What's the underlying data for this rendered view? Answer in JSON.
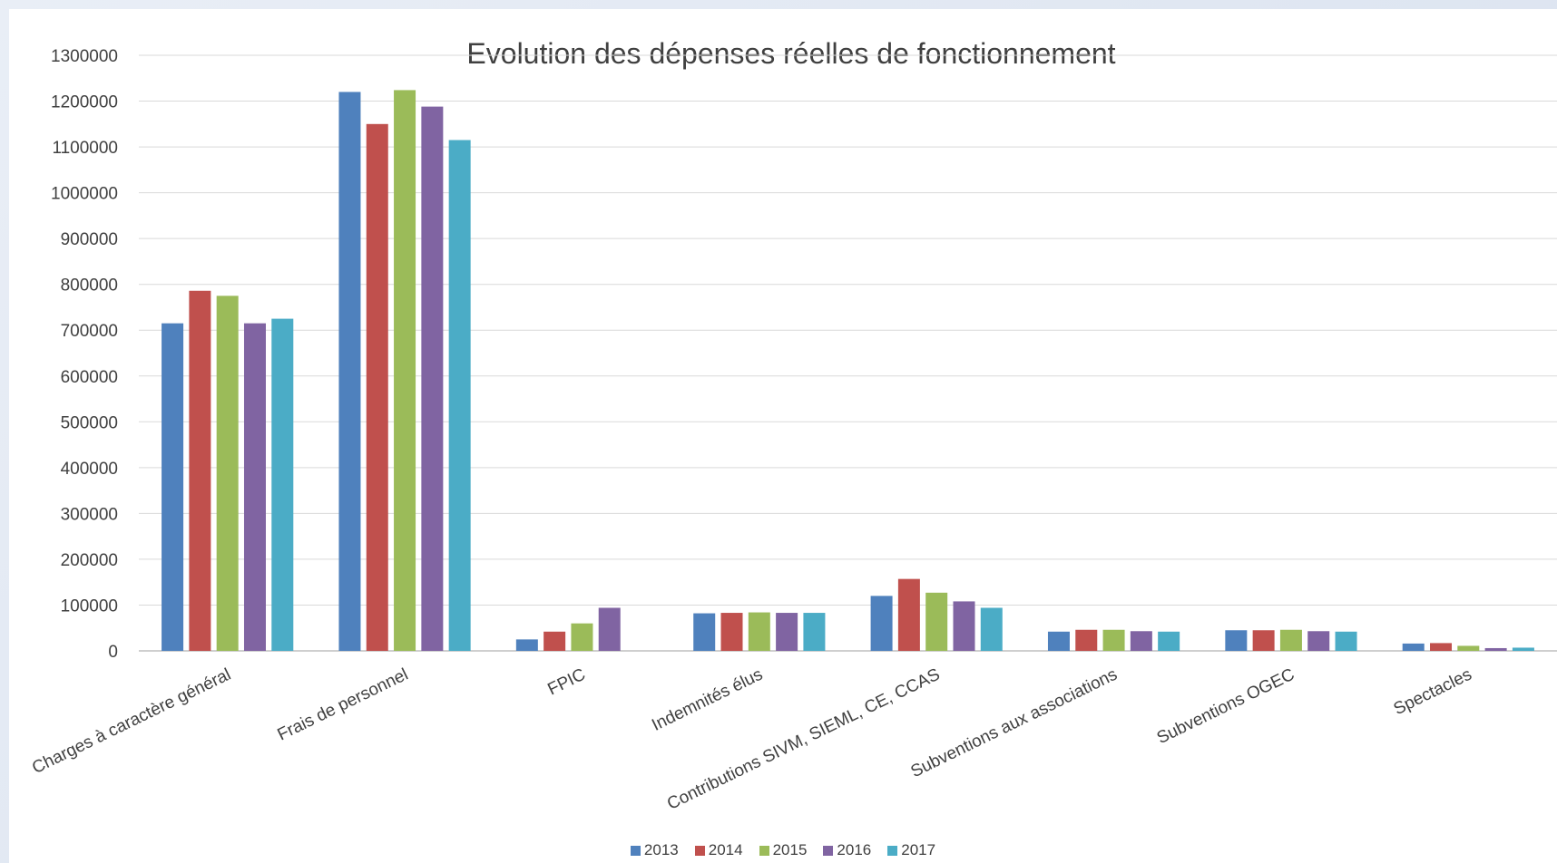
{
  "chart_data": {
    "type": "bar",
    "title": "Evolution des dépenses réelles de fonctionnement",
    "xlabel": "",
    "ylabel": "",
    "ylim": [
      0,
      1300000
    ],
    "yticks": [
      0,
      100000,
      200000,
      300000,
      400000,
      500000,
      600000,
      700000,
      800000,
      900000,
      1000000,
      1100000,
      1200000,
      1300000
    ],
    "grid": true,
    "legend_position": "bottom",
    "categories": [
      "Charges à caractère général",
      "Frais de personnel",
      "FPIC",
      "Indemnités élus",
      "Contributions SIVM, SIEML, CE, CCAS",
      "Subventions aux associations",
      "Subventions OGEC",
      "Spectacles"
    ],
    "series": [
      {
        "name": "2013",
        "color": "#4f81bd",
        "values": [
          715000,
          1220000,
          25000,
          82000,
          120000,
          42000,
          45000,
          16000
        ]
      },
      {
        "name": "2014",
        "color": "#c0504d",
        "values": [
          786000,
          1150000,
          42000,
          83000,
          157000,
          46000,
          45000,
          17000
        ]
      },
      {
        "name": "2015",
        "color": "#9bbb59",
        "values": [
          775000,
          1224000,
          60000,
          84000,
          127000,
          46000,
          46000,
          11000
        ]
      },
      {
        "name": "2016",
        "color": "#8064a2",
        "values": [
          715000,
          1188000,
          94000,
          83000,
          108000,
          43000,
          43000,
          6000
        ]
      },
      {
        "name": "2017",
        "color": "#4bacc6",
        "values": [
          725000,
          1115000,
          0,
          83000,
          94000,
          42000,
          42000,
          7000
        ]
      }
    ]
  }
}
